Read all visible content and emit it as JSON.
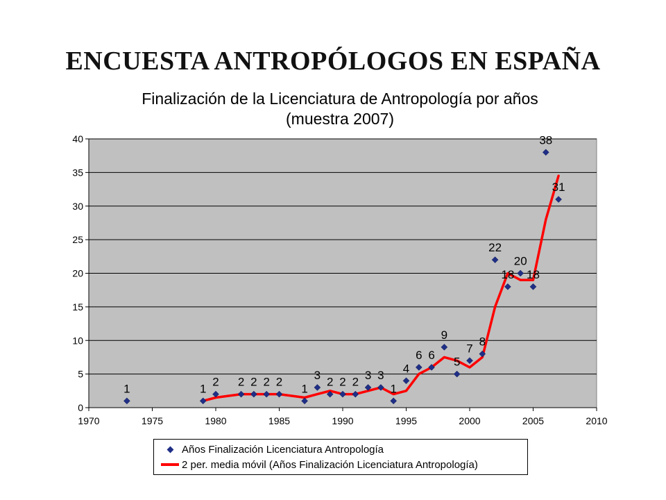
{
  "slide_title": "ENCUESTA ANTROPÓLOGOS EN ESPAÑA",
  "colors": {
    "plot_bg": "#c0c0c0",
    "marker": "#1f2f86",
    "moving_average": "#ff0000"
  },
  "chart_data": {
    "type": "scatter",
    "title": "Finalización de la Licenciatura de Antropología por años",
    "subtitle": "(muestra 2007)",
    "xlim": [
      1970,
      2010
    ],
    "ylim": [
      0,
      40
    ],
    "x_ticks": [
      "1970",
      "1975",
      "1980",
      "1985",
      "1990",
      "1995",
      "2000",
      "2005",
      "2010"
    ],
    "y_ticks": [
      "0",
      "5",
      "10",
      "15",
      "20",
      "25",
      "30",
      "35",
      "40"
    ],
    "grid": "horizontal",
    "legend_position": "bottom",
    "series": [
      {
        "name": "Años Finalización Licenciatura Antropología",
        "type": "scatter",
        "marker": "diamond",
        "x": [
          1973,
          1979,
          1980,
          1982,
          1983,
          1984,
          1985,
          1987,
          1988,
          1989,
          1990,
          1991,
          1992,
          1993,
          1994,
          1995,
          1996,
          1997,
          1998,
          1999,
          2000,
          2001,
          2002,
          2003,
          2004,
          2005,
          2006,
          2007
        ],
        "y": [
          1,
          1,
          2,
          2,
          2,
          2,
          2,
          1,
          3,
          2,
          2,
          2,
          3,
          3,
          1,
          4,
          6,
          6,
          9,
          5,
          7,
          8,
          22,
          18,
          20,
          18,
          38,
          31
        ],
        "data_labels": true
      },
      {
        "name": "2 per. media móvil (Años Finalización Licenciatura Antropología)",
        "type": "line",
        "x": [
          1979,
          1980,
          1982,
          1983,
          1984,
          1985,
          1987,
          1988,
          1989,
          1990,
          1991,
          1992,
          1993,
          1994,
          1995,
          1996,
          1997,
          1998,
          1999,
          2000,
          2001,
          2002,
          2003,
          2004,
          2005,
          2006,
          2007
        ],
        "y": [
          1,
          1.5,
          2,
          2,
          2,
          2,
          1.5,
          2,
          2.5,
          2,
          2,
          2.5,
          3,
          2,
          2.5,
          5,
          6,
          7.5,
          7,
          6,
          7.5,
          15,
          20,
          19,
          19,
          28,
          34.5
        ]
      }
    ]
  }
}
